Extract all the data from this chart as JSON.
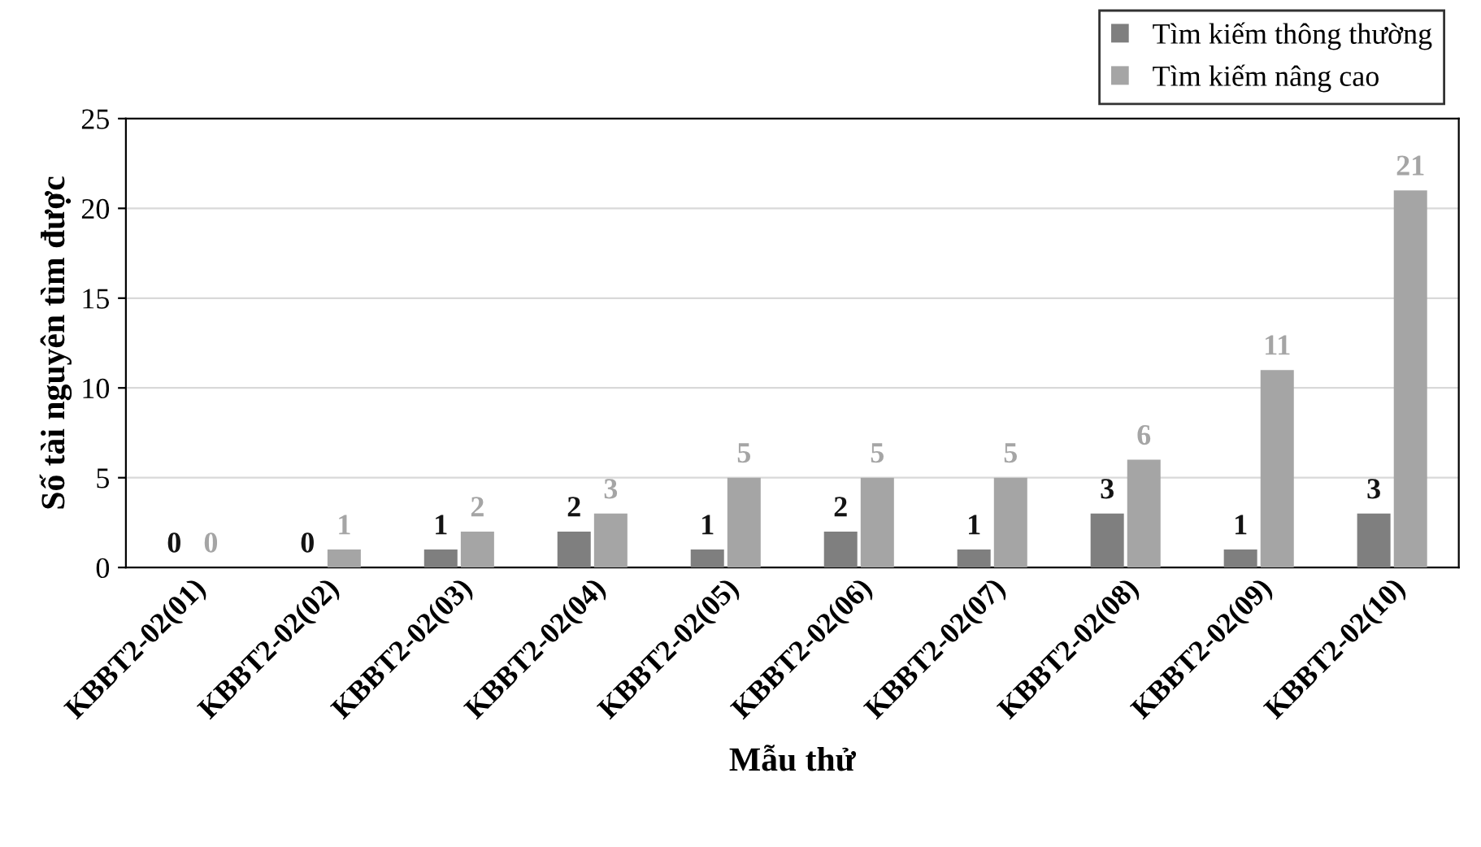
{
  "chart_data": {
    "type": "bar",
    "xlabel": "Mẫu thử",
    "ylabel": "Số tài nguyên tìm được",
    "categories": [
      "KBBT2-02(01)",
      "KBBT2-02(02)",
      "KBBT2-02(03)",
      "KBBT2-02(04)",
      "KBBT2-02(05)",
      "KBBT2-02(06)",
      "KBBT2-02(07)",
      "KBBT2-02(08)",
      "KBBT2-02(09)",
      "KBBT2-02(10)"
    ],
    "series": [
      {
        "name": "Tìm kiếm thông thường",
        "color": "#7f7f7f",
        "values": [
          0,
          0,
          1,
          2,
          1,
          2,
          1,
          3,
          1,
          3
        ]
      },
      {
        "name": "Tìm kiếm nâng cao",
        "color": "#a5a5a5",
        "values": [
          0,
          1,
          2,
          3,
          5,
          5,
          5,
          6,
          11,
          21
        ]
      }
    ],
    "ylim": [
      0,
      25
    ],
    "yticks": [
      0,
      5,
      10,
      15,
      20,
      25
    ],
    "grid": "y",
    "legend": "top right",
    "data_labels": true
  }
}
